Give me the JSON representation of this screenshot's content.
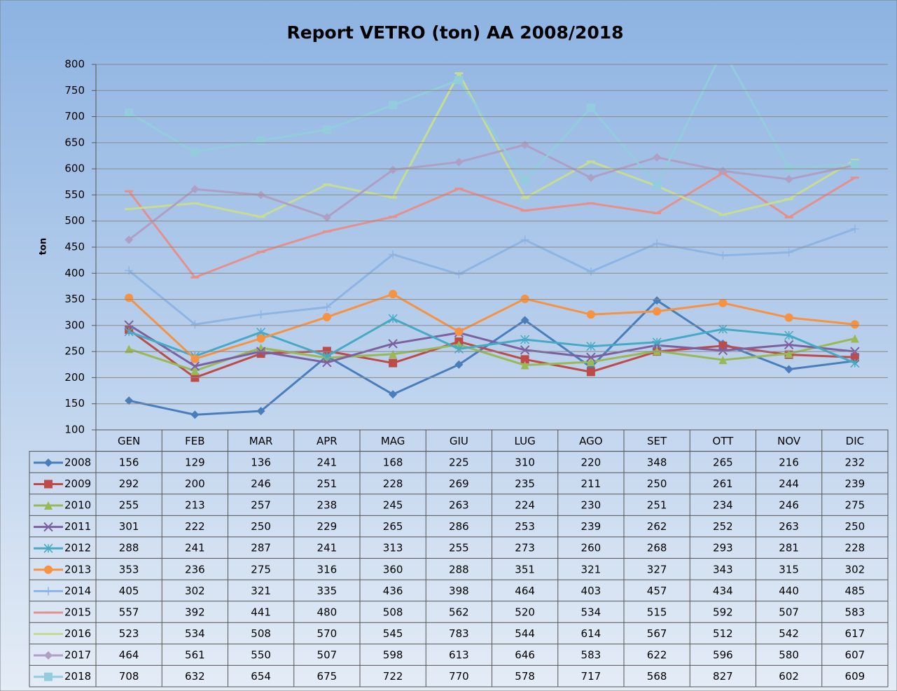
{
  "chart_data": {
    "type": "line",
    "title": "Report VETRO (ton) AA 2008/2018",
    "y_label": "ton",
    "categories": [
      "GEN",
      "FEB",
      "MAR",
      "APR",
      "MAG",
      "GIU",
      "LUG",
      "AGO",
      "SET",
      "OTT",
      "NOV",
      "DIC"
    ],
    "ylim": [
      100,
      800
    ],
    "yticks": [
      100,
      150,
      200,
      250,
      300,
      350,
      400,
      450,
      500,
      550,
      600,
      650,
      700,
      750,
      800
    ],
    "grid": true,
    "series": [
      {
        "name": "2008",
        "color": "#4a7ebb",
        "marker": "diamond",
        "values": [
          156,
          129,
          136,
          241,
          168,
          225,
          310,
          220,
          348,
          265,
          216,
          232
        ]
      },
      {
        "name": "2009",
        "color": "#be4b48",
        "marker": "square",
        "values": [
          292,
          200,
          246,
          251,
          228,
          269,
          235,
          211,
          250,
          261,
          244,
          239
        ]
      },
      {
        "name": "2010",
        "color": "#98b954",
        "marker": "triangle",
        "values": [
          255,
          213,
          257,
          238,
          245,
          263,
          224,
          230,
          251,
          234,
          246,
          275
        ]
      },
      {
        "name": "2011",
        "color": "#7d60a0",
        "marker": "x",
        "values": [
          301,
          222,
          250,
          229,
          265,
          286,
          253,
          239,
          262,
          252,
          263,
          250
        ]
      },
      {
        "name": "2012",
        "color": "#46aac5",
        "marker": "star",
        "values": [
          288,
          241,
          287,
          241,
          313,
          255,
          273,
          260,
          268,
          293,
          281,
          228
        ]
      },
      {
        "name": "2013",
        "color": "#f69240",
        "marker": "circle",
        "values": [
          353,
          236,
          275,
          316,
          360,
          288,
          351,
          321,
          327,
          343,
          315,
          302
        ]
      },
      {
        "name": "2014",
        "color": "#8eb4e3",
        "marker": "plus",
        "values": [
          405,
          302,
          321,
          335,
          436,
          398,
          464,
          403,
          457,
          434,
          440,
          485
        ]
      },
      {
        "name": "2015",
        "color": "#e6908e",
        "marker": "dash",
        "values": [
          557,
          392,
          441,
          480,
          508,
          562,
          520,
          534,
          515,
          592,
          507,
          583
        ]
      },
      {
        "name": "2016",
        "color": "#c6dc93",
        "marker": "dash",
        "values": [
          523,
          534,
          508,
          570,
          545,
          783,
          544,
          614,
          567,
          512,
          542,
          617
        ]
      },
      {
        "name": "2017",
        "color": "#ae9fc4",
        "marker": "diamond",
        "values": [
          464,
          561,
          550,
          507,
          598,
          613,
          646,
          583,
          622,
          596,
          580,
          607
        ]
      },
      {
        "name": "2018",
        "color": "#93cddd",
        "marker": "square",
        "values": [
          708,
          632,
          654,
          675,
          722,
          770,
          578,
          717,
          568,
          827,
          602,
          609
        ]
      }
    ]
  }
}
